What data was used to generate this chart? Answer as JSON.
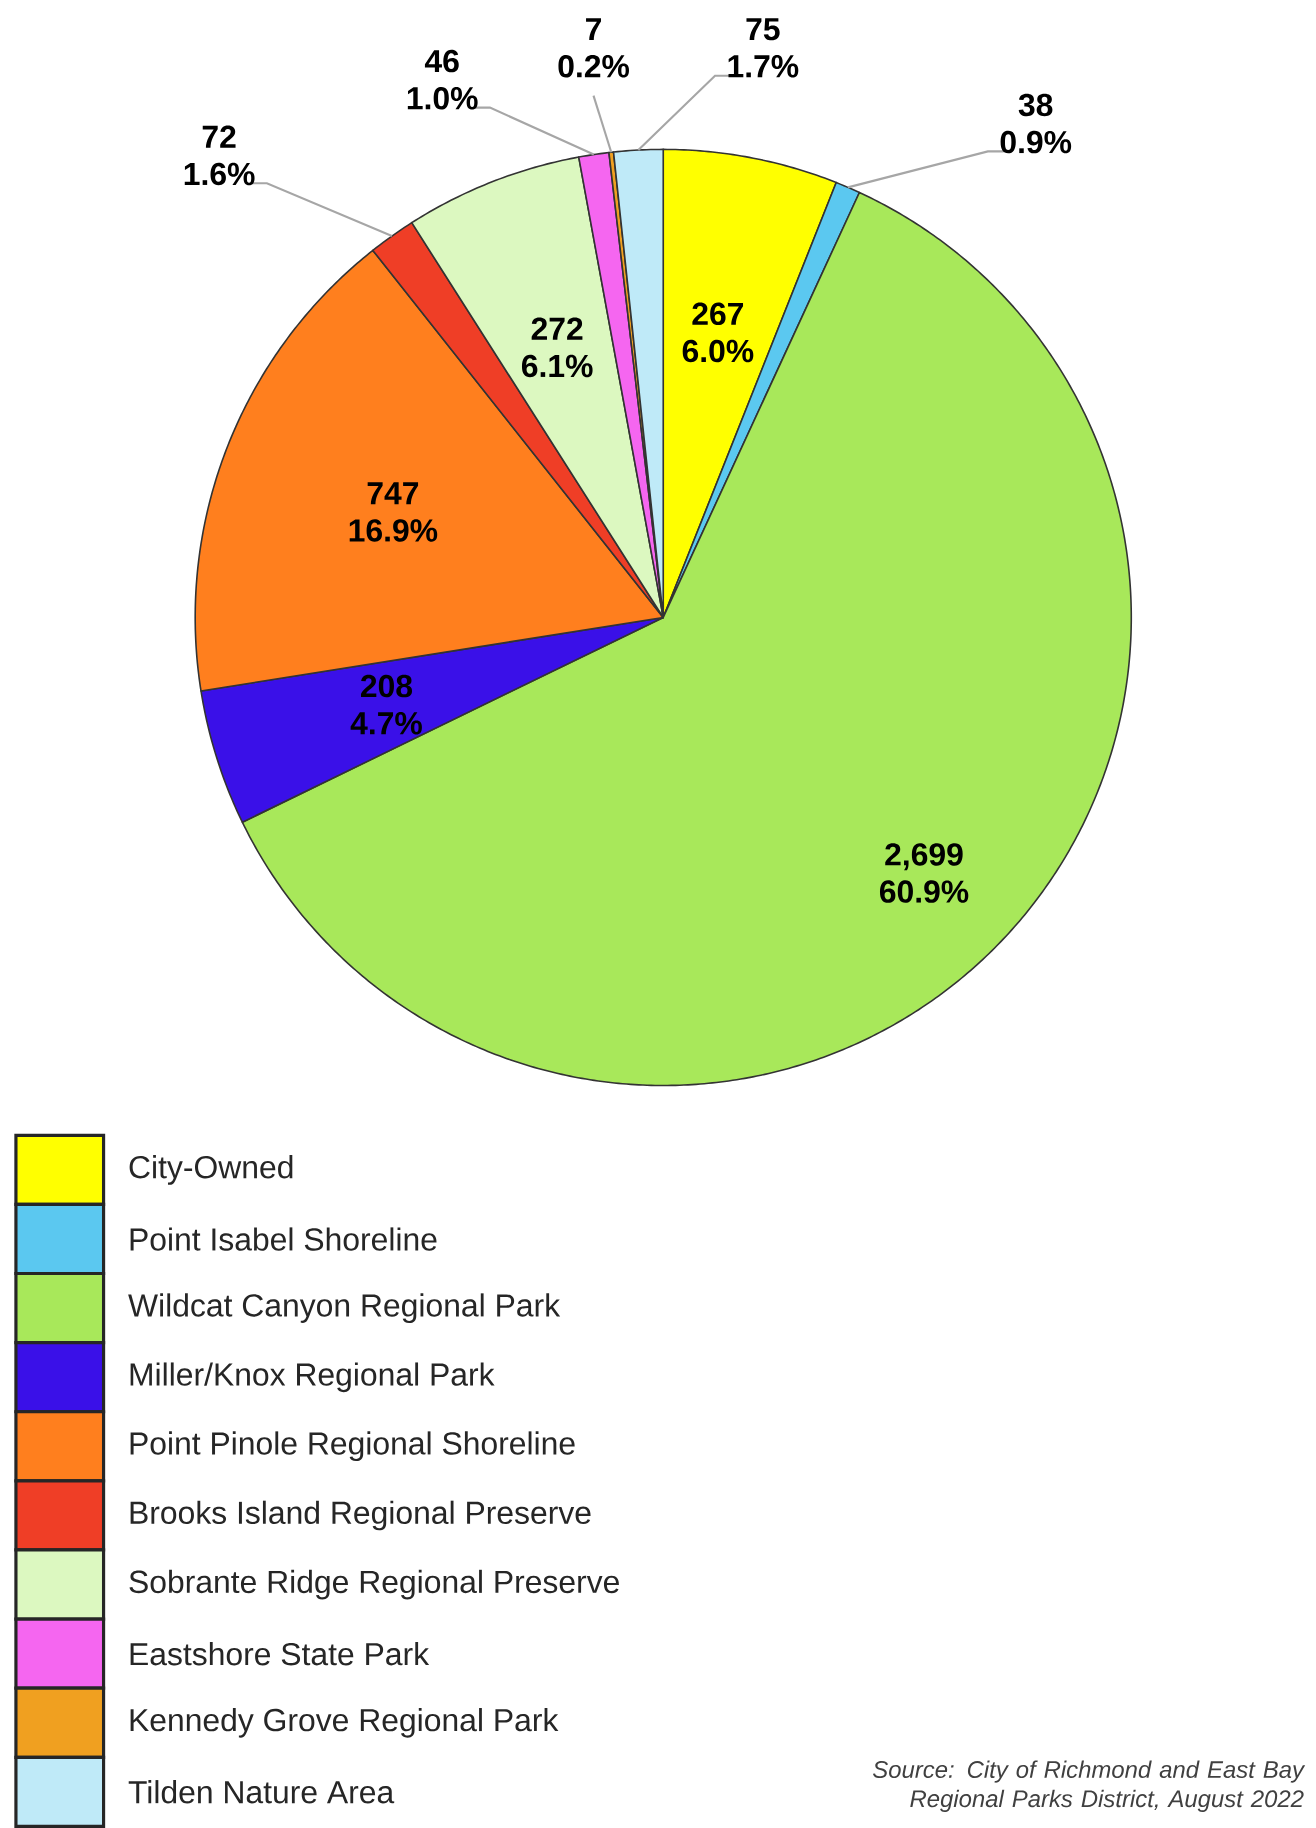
{
  "chart_data": {
    "type": "pie",
    "categories": [
      "City-Owned",
      "Point Isabel Shoreline",
      "Wildcat Canyon Regional Park",
      "Miller/Knox Regional Park",
      "Point Pinole Regional Shoreline",
      "Brooks Island Regional Preserve",
      "Sobrante Ridge Regional Preserve",
      "Eastshore State Park",
      "Kennedy Grove Regional Park",
      "Tilden Nature Area"
    ],
    "values": [
      267,
      38,
      2699,
      208,
      747,
      72,
      272,
      46,
      7,
      75
    ],
    "value_labels": [
      "267 6.0%",
      "38 0.9%",
      "2,699 60.9%",
      "208 4.7%",
      "747 16.9%",
      "72 1.6%",
      "272 6.1%",
      "46 1.0%",
      "7 0.2%",
      "75 1.7%"
    ],
    "colors": [
      "#ffff00",
      "#5bc8f0",
      "#a8e85a",
      "#3a10e8",
      "#ff7f1e",
      "#ef3e26",
      "#dcf8c0",
      "#f566f0",
      "#f0a020",
      "#bfeaf8"
    ],
    "legend": "bottom left",
    "annotations": [
      "Source: City of Richmond and East Bay Regional Parks District, August 2022"
    ]
  }
}
